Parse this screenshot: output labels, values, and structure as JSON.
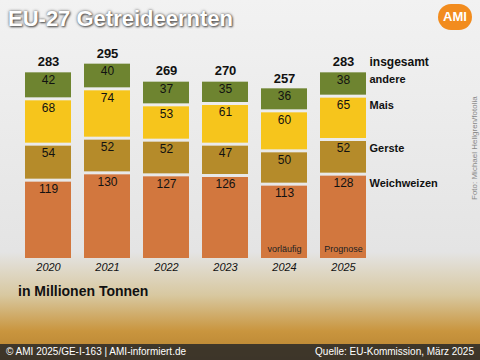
{
  "chart_data": {
    "type": "bar",
    "stacked": true,
    "data_labels": true,
    "tick_labels": "x",
    "legend": "right",
    "title": "EU-27 Getreideernten",
    "subtitle": "in Millionen Tonnen",
    "categories": [
      "2020",
      "2021",
      "2022",
      "2023",
      "2024",
      "2025"
    ],
    "series": [
      {
        "name": "Weichweizen",
        "color": "#d2773e",
        "values": [
          119,
          130,
          127,
          126,
          113,
          128
        ]
      },
      {
        "name": "Gerste",
        "color": "#b58b2a",
        "values": [
          54,
          52,
          52,
          47,
          50,
          52
        ]
      },
      {
        "name": "Mais",
        "color": "#f6c51c",
        "values": [
          68,
          74,
          53,
          61,
          60,
          65
        ]
      },
      {
        "name": "andere",
        "color": "#6e8430",
        "values": [
          42,
          40,
          37,
          35,
          36,
          38
        ]
      }
    ],
    "totals": {
      "label": "insgesamt",
      "values": [
        283,
        295,
        269,
        270,
        257,
        283
      ]
    },
    "annotations": [
      {
        "x": "2024",
        "text": "vorläufig"
      },
      {
        "x": "2025",
        "text": "Prognose"
      }
    ],
    "ylim": [
      0,
      300
    ],
    "logo": "AMI",
    "photo_credit": "Foto: Michael Hellgren/fotolia",
    "copyright": "© AMI 2025/GE-I-163 | AMI-informiert.de",
    "source": "Quelle: EU-Kommission, März 2025"
  }
}
